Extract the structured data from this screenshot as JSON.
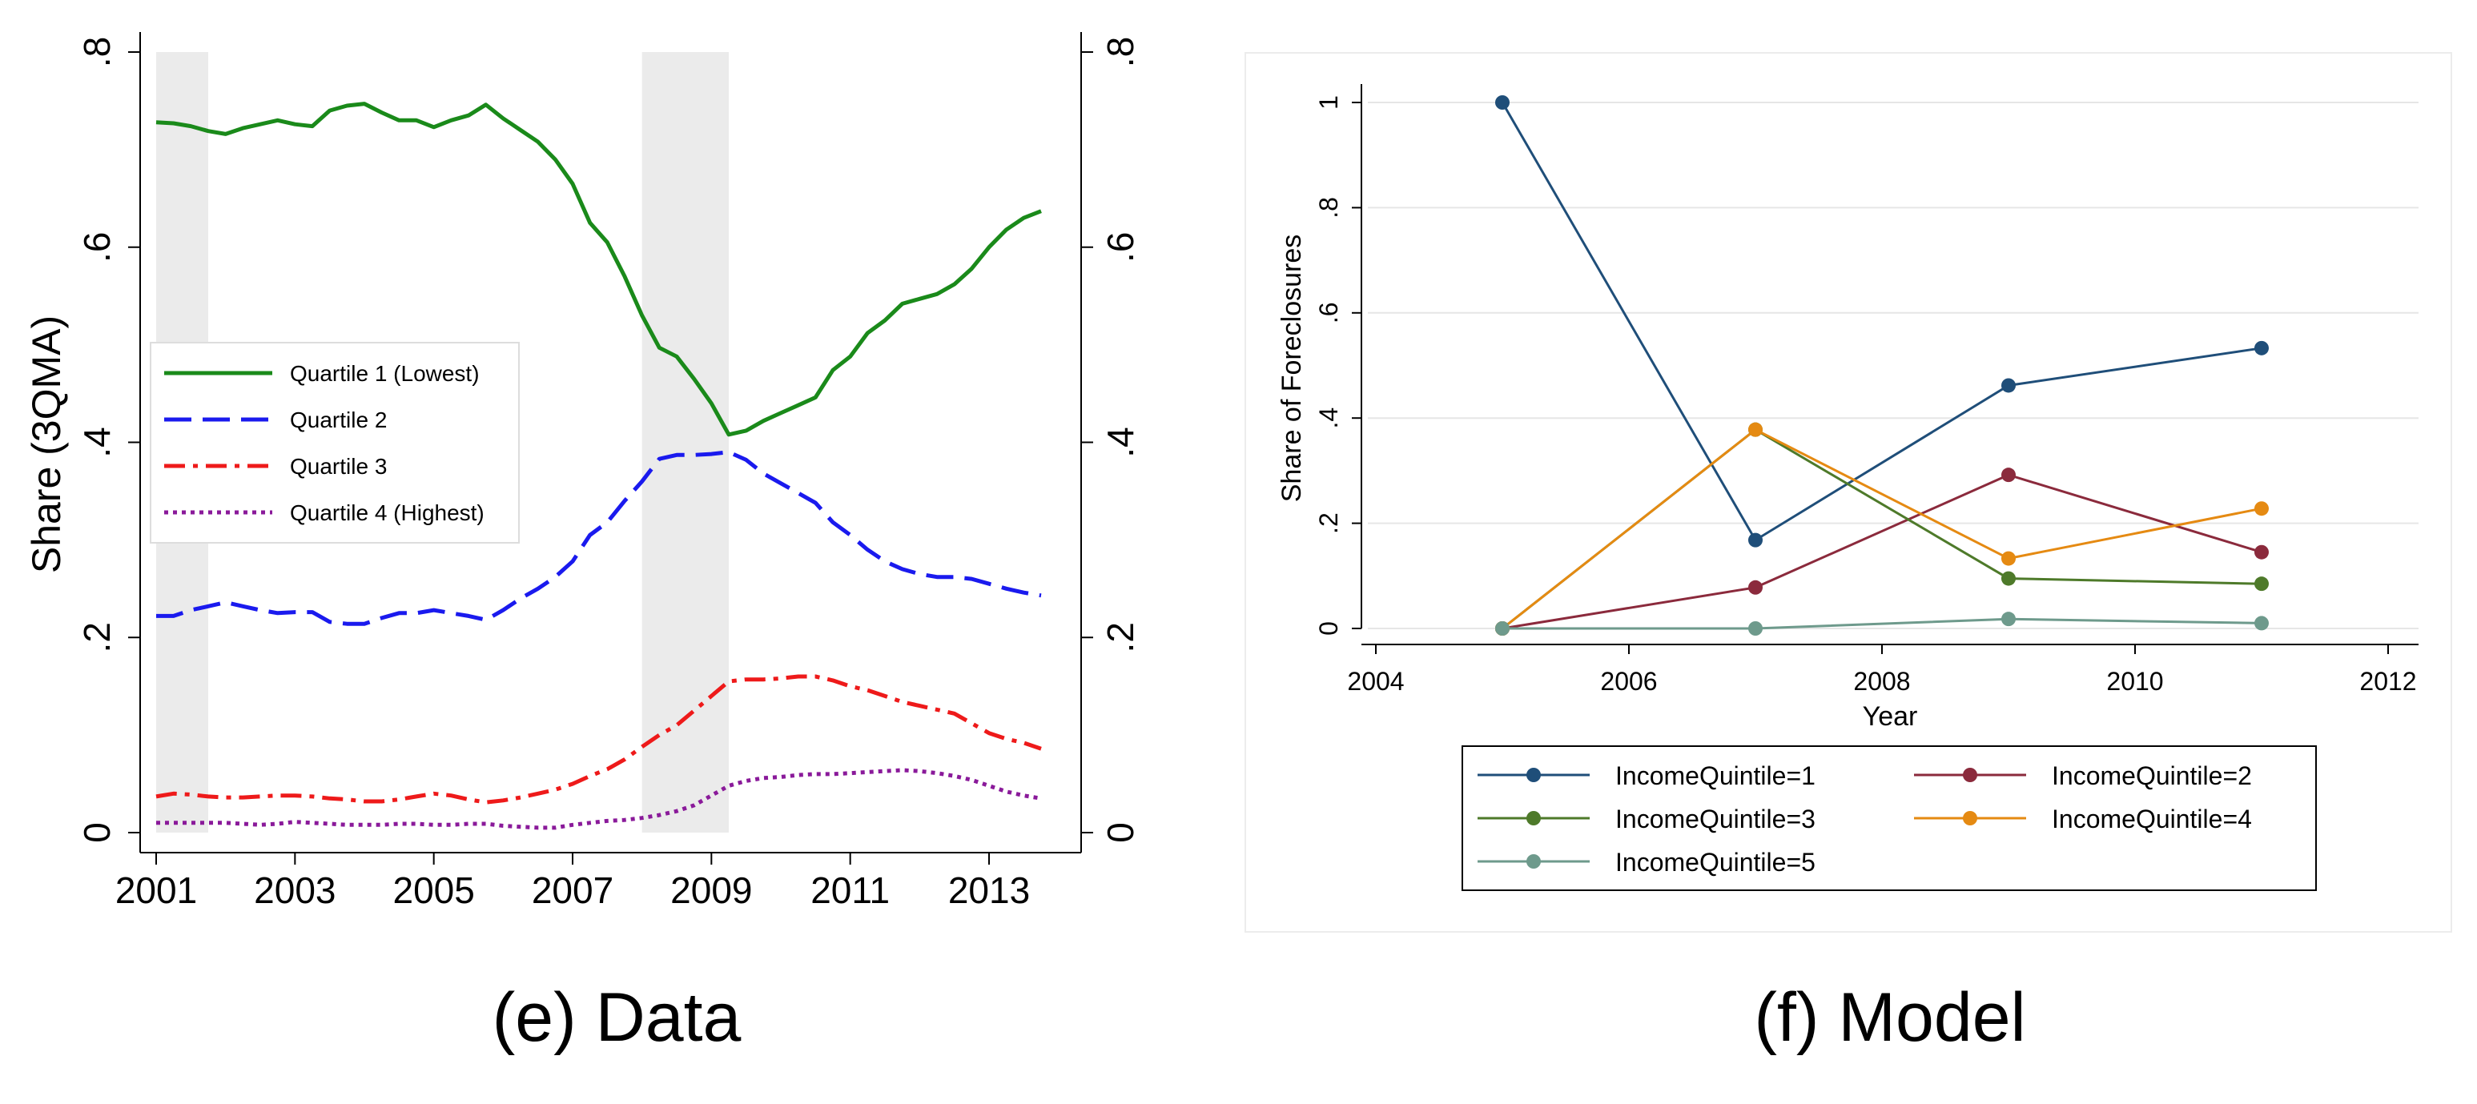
{
  "chart_data": [
    {
      "type": "line",
      "caption": "(e) Data",
      "ylabel": "Share (3QMA)",
      "x_ticks": [
        "2001",
        "2003",
        "2005",
        "2007",
        "2009",
        "2011",
        "2013"
      ],
      "y_ticks": [
        "0",
        ".2",
        ".4",
        ".6",
        ".8"
      ],
      "y_tick_values": [
        0,
        0.2,
        0.4,
        0.6,
        0.8
      ],
      "xlim": [
        2001.0,
        2014.0
      ],
      "ylim": [
        0,
        0.8
      ],
      "right_axis": true,
      "shaded_regions": [
        [
          2001.0,
          2001.75
        ],
        [
          2008.0,
          2009.25
        ]
      ],
      "legend_position": "middle-left",
      "series": [
        {
          "name": "Quartile 1 (Lowest)",
          "color": "#1a8a1a",
          "dash": "solid",
          "x": [
            2001.0,
            2001.25,
            2001.5,
            2001.75,
            2002.0,
            2002.25,
            2002.5,
            2002.75,
            2003.0,
            2003.25,
            2003.5,
            2003.75,
            2004.0,
            2004.25,
            2004.5,
            2004.75,
            2005.0,
            2005.25,
            2005.5,
            2005.75,
            2006.0,
            2006.25,
            2006.5,
            2006.75,
            2007.0,
            2007.25,
            2007.5,
            2007.75,
            2008.0,
            2008.25,
            2008.5,
            2008.75,
            2009.0,
            2009.25,
            2009.5,
            2009.75,
            2010.0,
            2010.25,
            2010.5,
            2010.75,
            2011.0,
            2011.25,
            2011.5,
            2011.75,
            2012.0,
            2012.25,
            2012.5,
            2012.75,
            2013.0,
            2013.25,
            2013.5,
            2013.75
          ],
          "y": [
            0.728,
            0.727,
            0.724,
            0.719,
            0.716,
            0.722,
            0.726,
            0.73,
            0.726,
            0.724,
            0.74,
            0.745,
            0.747,
            0.738,
            0.73,
            0.73,
            0.723,
            0.73,
            0.735,
            0.746,
            0.732,
            0.72,
            0.708,
            0.69,
            0.665,
            0.625,
            0.605,
            0.57,
            0.53,
            0.497,
            0.488,
            0.465,
            0.44,
            0.408,
            0.412,
            0.422,
            0.43,
            0.438,
            0.446,
            0.474,
            0.488,
            0.512,
            0.525,
            0.542,
            0.547,
            0.552,
            0.562,
            0.578,
            0.6,
            0.618,
            0.63,
            0.637
          ]
        },
        {
          "name": "Quartile 2",
          "color": "#1a1aee",
          "dash": "longdash",
          "x": [
            2001.0,
            2001.25,
            2001.5,
            2001.75,
            2002.0,
            2002.25,
            2002.5,
            2002.75,
            2003.0,
            2003.25,
            2003.5,
            2003.75,
            2004.0,
            2004.25,
            2004.5,
            2004.75,
            2005.0,
            2005.25,
            2005.5,
            2005.75,
            2006.0,
            2006.25,
            2006.5,
            2006.75,
            2007.0,
            2007.25,
            2007.5,
            2007.75,
            2008.0,
            2008.25,
            2008.5,
            2008.75,
            2009.0,
            2009.25,
            2009.5,
            2009.75,
            2010.0,
            2010.25,
            2010.5,
            2010.75,
            2011.0,
            2011.25,
            2011.5,
            2011.75,
            2012.0,
            2012.25,
            2012.5,
            2012.75,
            2013.0,
            2013.25,
            2013.5,
            2013.75
          ],
          "y": [
            0.222,
            0.222,
            0.228,
            0.232,
            0.236,
            0.232,
            0.228,
            0.225,
            0.226,
            0.226,
            0.216,
            0.214,
            0.214,
            0.22,
            0.225,
            0.225,
            0.228,
            0.225,
            0.222,
            0.218,
            0.228,
            0.24,
            0.25,
            0.262,
            0.278,
            0.305,
            0.318,
            0.34,
            0.36,
            0.383,
            0.387,
            0.387,
            0.388,
            0.39,
            0.382,
            0.368,
            0.358,
            0.348,
            0.338,
            0.318,
            0.305,
            0.29,
            0.278,
            0.27,
            0.265,
            0.262,
            0.262,
            0.26,
            0.255,
            0.25,
            0.246,
            0.243
          ]
        },
        {
          "name": "Quartile 3",
          "color": "#ee1a1a",
          "dash": "dashdot",
          "x": [
            2001.0,
            2001.25,
            2001.5,
            2001.75,
            2002.0,
            2002.25,
            2002.5,
            2002.75,
            2003.0,
            2003.25,
            2003.5,
            2003.75,
            2004.0,
            2004.25,
            2004.5,
            2004.75,
            2005.0,
            2005.25,
            2005.5,
            2005.75,
            2006.0,
            2006.25,
            2006.5,
            2006.75,
            2007.0,
            2007.25,
            2007.5,
            2007.75,
            2008.0,
            2008.25,
            2008.5,
            2008.75,
            2009.0,
            2009.25,
            2009.5,
            2009.75,
            2010.0,
            2010.25,
            2010.5,
            2010.75,
            2011.0,
            2011.25,
            2011.5,
            2011.75,
            2012.0,
            2012.25,
            2012.5,
            2012.75,
            2013.0,
            2013.25,
            2013.5,
            2013.75
          ],
          "y": [
            0.037,
            0.04,
            0.039,
            0.037,
            0.036,
            0.036,
            0.037,
            0.038,
            0.038,
            0.037,
            0.035,
            0.034,
            0.032,
            0.032,
            0.034,
            0.037,
            0.04,
            0.038,
            0.034,
            0.031,
            0.033,
            0.036,
            0.04,
            0.044,
            0.05,
            0.058,
            0.065,
            0.075,
            0.088,
            0.1,
            0.11,
            0.125,
            0.14,
            0.155,
            0.157,
            0.157,
            0.158,
            0.16,
            0.16,
            0.156,
            0.15,
            0.146,
            0.14,
            0.134,
            0.13,
            0.126,
            0.122,
            0.112,
            0.102,
            0.096,
            0.092,
            0.086
          ]
        },
        {
          "name": "Quartile 4 (Highest)",
          "color": "#8a1a9a",
          "dash": "dotted",
          "x": [
            2001.0,
            2001.25,
            2001.5,
            2001.75,
            2002.0,
            2002.25,
            2002.5,
            2002.75,
            2003.0,
            2003.25,
            2003.5,
            2003.75,
            2004.0,
            2004.25,
            2004.5,
            2004.75,
            2005.0,
            2005.25,
            2005.5,
            2005.75,
            2006.0,
            2006.25,
            2006.5,
            2006.75,
            2007.0,
            2007.25,
            2007.5,
            2007.75,
            2008.0,
            2008.25,
            2008.5,
            2008.75,
            2009.0,
            2009.25,
            2009.5,
            2009.75,
            2010.0,
            2010.25,
            2010.5,
            2010.75,
            2011.0,
            2011.25,
            2011.5,
            2011.75,
            2012.0,
            2012.25,
            2012.5,
            2012.75,
            2013.0,
            2013.25,
            2013.5,
            2013.75
          ],
          "y": [
            0.01,
            0.01,
            0.01,
            0.01,
            0.01,
            0.009,
            0.008,
            0.009,
            0.011,
            0.01,
            0.009,
            0.008,
            0.008,
            0.008,
            0.009,
            0.009,
            0.008,
            0.008,
            0.009,
            0.009,
            0.007,
            0.006,
            0.005,
            0.005,
            0.008,
            0.01,
            0.012,
            0.013,
            0.015,
            0.018,
            0.022,
            0.028,
            0.038,
            0.048,
            0.053,
            0.056,
            0.057,
            0.059,
            0.06,
            0.06,
            0.061,
            0.062,
            0.063,
            0.064,
            0.063,
            0.061,
            0.058,
            0.054,
            0.048,
            0.042,
            0.038,
            0.035
          ]
        }
      ]
    },
    {
      "type": "line",
      "caption": "(f) Model",
      "xlabel": "Year",
      "ylabel": "Share of Foreclosures",
      "x_ticks": [
        "2004",
        "2006",
        "2008",
        "2010",
        "2012"
      ],
      "x_tick_values": [
        2004,
        2006,
        2008,
        2010,
        2012
      ],
      "y_ticks": [
        "0",
        ".2",
        ".4",
        ".6",
        ".8",
        "1"
      ],
      "y_tick_values": [
        0,
        0.2,
        0.4,
        0.6,
        0.8,
        1.0
      ],
      "xlim": [
        2004,
        2012
      ],
      "ylim": [
        0,
        1
      ],
      "grid": true,
      "legend_position": "bottom",
      "x": [
        2005,
        2007,
        2009,
        2011
      ],
      "series": [
        {
          "name": "IncomeQuintile=1",
          "color": "#1f4e79",
          "values": [
            1.0,
            0.168,
            0.462,
            0.533
          ]
        },
        {
          "name": "IncomeQuintile=2",
          "color": "#8b2a3c",
          "values": [
            0.0,
            0.078,
            0.292,
            0.145
          ]
        },
        {
          "name": "IncomeQuintile=3",
          "color": "#4e7a2a",
          "values": [
            0.0,
            0.378,
            0.095,
            0.085
          ]
        },
        {
          "name": "IncomeQuintile=4",
          "color": "#e58a12",
          "values": [
            0.0,
            0.378,
            0.133,
            0.228
          ]
        },
        {
          "name": "IncomeQuintile=5",
          "color": "#6e9a8c",
          "values": [
            0.0,
            0.0,
            0.018,
            0.01
          ]
        }
      ]
    }
  ]
}
